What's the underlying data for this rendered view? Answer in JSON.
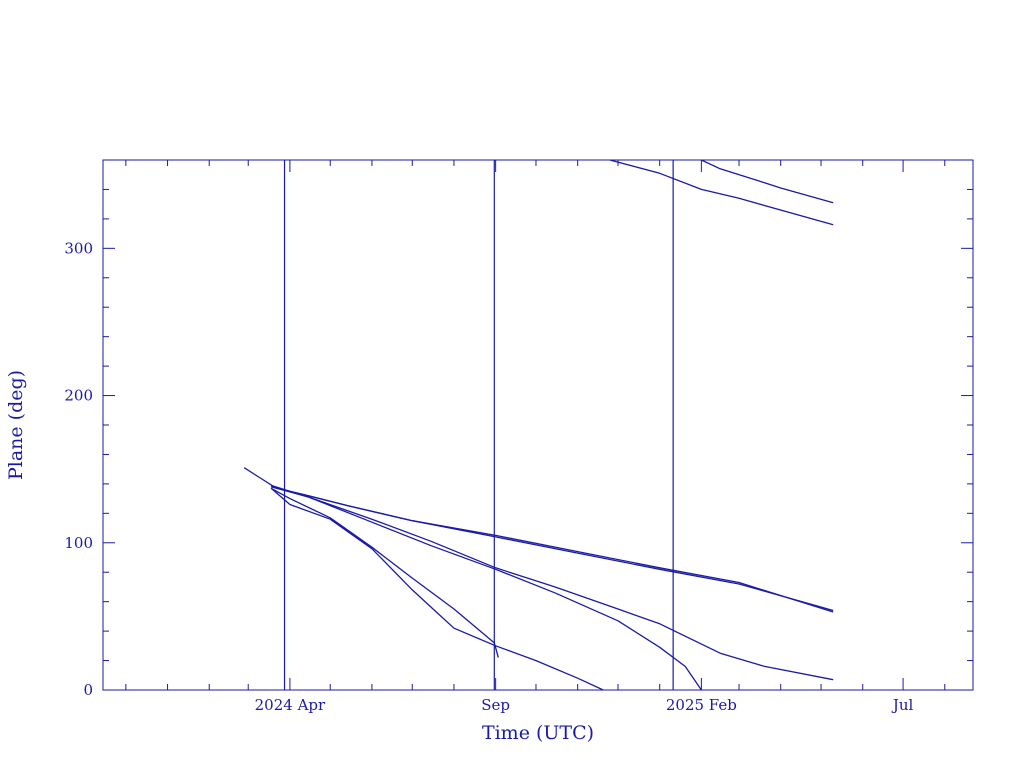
{
  "chart_data": {
    "type": "line",
    "title": "",
    "xlabel": "Time (UTC)",
    "ylabel": "Plane (deg)",
    "x_axis": "time",
    "xlim": [
      "2023-11-14",
      "2025-08-22"
    ],
    "ylim": [
      0,
      360
    ],
    "grid": false,
    "color": "#1a1aa6",
    "x_ticks": [
      {
        "date": "2024-04-01",
        "label": "2024 Apr"
      },
      {
        "date": "2024-09-01",
        "label": "Sep"
      },
      {
        "date": "2025-02-01",
        "label": "2025 Feb"
      },
      {
        "date": "2025-07-01",
        "label": "Jul"
      }
    ],
    "x_minor_ticks": [
      "2023-12-01",
      "2024-01-01",
      "2024-02-01",
      "2024-03-01",
      "2024-05-01",
      "2024-06-01",
      "2024-07-01",
      "2024-08-01",
      "2024-10-01",
      "2024-11-01",
      "2024-12-01",
      "2025-01-01",
      "2025-03-01",
      "2025-04-01",
      "2025-05-01",
      "2025-06-01",
      "2025-08-01"
    ],
    "y_ticks": [
      0,
      100,
      200,
      300
    ],
    "y_minor_step": 20,
    "vertical_markers": [
      "2024-03-28",
      "2024-08-31",
      "2025-01-11"
    ],
    "series": [
      {
        "points": [
          [
            "2024-02-27",
            151
          ],
          [
            "2024-03-10",
            144
          ],
          [
            "2024-03-22",
            137
          ],
          [
            "2024-04-10",
            133
          ],
          [
            "2024-05-15",
            125
          ],
          [
            "2024-07-01",
            115
          ],
          [
            "2024-09-01",
            104
          ],
          [
            "2024-11-01",
            93
          ],
          [
            "2025-01-01",
            82
          ],
          [
            "2025-03-01",
            72
          ],
          [
            "2025-05-10",
            54
          ]
        ]
      },
      {
        "points": [
          [
            "2024-03-18",
            138
          ],
          [
            "2024-04-15",
            132
          ],
          [
            "2024-05-15",
            125
          ],
          [
            "2024-07-01",
            115
          ],
          [
            "2024-09-01",
            105
          ],
          [
            "2024-11-01",
            94
          ],
          [
            "2025-01-01",
            83
          ],
          [
            "2025-03-01",
            73
          ],
          [
            "2025-05-10",
            53
          ]
        ]
      },
      {
        "points": [
          [
            "2024-03-18",
            139
          ],
          [
            "2024-04-15",
            131
          ],
          [
            "2024-06-01",
            116
          ],
          [
            "2024-07-15",
            101
          ],
          [
            "2024-09-01",
            83
          ],
          [
            "2024-10-15",
            70
          ],
          [
            "2024-12-01",
            55
          ],
          [
            "2025-01-01",
            45
          ],
          [
            "2025-02-15",
            25
          ],
          [
            "2025-03-20",
            16
          ],
          [
            "2025-05-10",
            7
          ]
        ]
      },
      {
        "points": [
          [
            "2024-03-18",
            138
          ],
          [
            "2024-04-15",
            131
          ],
          [
            "2024-06-01",
            114
          ],
          [
            "2024-07-15",
            98
          ],
          [
            "2024-09-01",
            82
          ],
          [
            "2024-10-15",
            66
          ],
          [
            "2024-12-01",
            47
          ],
          [
            "2025-01-01",
            29
          ],
          [
            "2025-01-20",
            16
          ],
          [
            "2025-02-01",
            0
          ]
        ]
      },
      {
        "points": [
          [
            "2024-03-18",
            137
          ],
          [
            "2024-04-01",
            130
          ],
          [
            "2024-05-01",
            117
          ],
          [
            "2024-06-01",
            97
          ],
          [
            "2024-07-01",
            76
          ],
          [
            "2024-08-01",
            55
          ],
          [
            "2024-08-31",
            32
          ],
          [
            "2024-09-03",
            22
          ]
        ]
      },
      {
        "points": [
          [
            "2024-03-18",
            137
          ],
          [
            "2024-04-01",
            126
          ],
          [
            "2024-05-01",
            116
          ],
          [
            "2024-06-01",
            96
          ],
          [
            "2024-07-01",
            68
          ],
          [
            "2024-07-20",
            52
          ],
          [
            "2024-08-01",
            42
          ],
          [
            "2024-09-01",
            30
          ],
          [
            "2024-10-01",
            20
          ],
          [
            "2024-11-01",
            8
          ],
          [
            "2024-11-20",
            0
          ]
        ]
      },
      {
        "points": [
          [
            "2024-11-25",
            360
          ],
          [
            "2025-01-01",
            351
          ],
          [
            "2025-02-01",
            340
          ],
          [
            "2025-03-01",
            334
          ],
          [
            "2025-05-10",
            316
          ]
        ]
      },
      {
        "points": [
          [
            "2025-02-01",
            360
          ],
          [
            "2025-02-15",
            354
          ],
          [
            "2025-03-15",
            346
          ],
          [
            "2025-04-01",
            341
          ],
          [
            "2025-05-10",
            331
          ]
        ]
      }
    ]
  }
}
